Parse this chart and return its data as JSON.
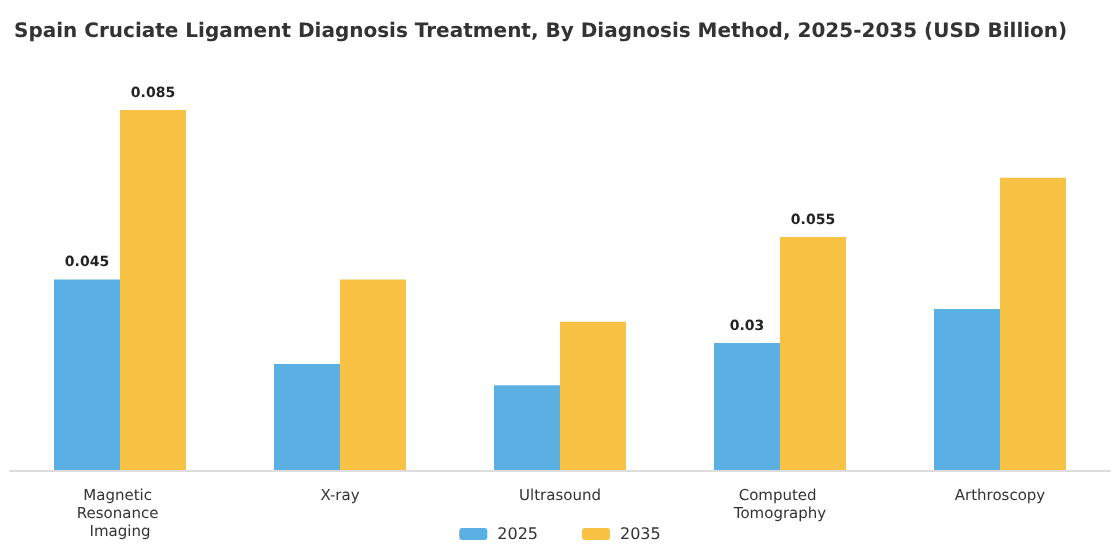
{
  "chart_data": {
    "type": "bar",
    "title": "Spain Cruciate Ligament Diagnosis Treatment, By Diagnosis Method, 2025-2035 (USD Billion)",
    "categories": [
      "Magnetic Resonance Imaging",
      "X-ray",
      "Ultrasound",
      "Computed Tomography",
      "Arthroscopy"
    ],
    "series": [
      {
        "name": "2025",
        "color": "#5aafe3",
        "values": [
          0.045,
          0.025,
          0.02,
          0.03,
          0.038
        ],
        "value_labels": [
          "0.045",
          null,
          null,
          "0.03",
          null
        ]
      },
      {
        "name": "2035",
        "color": "#f8c245",
        "values": [
          0.085,
          0.045,
          0.035,
          0.055,
          0.069
        ],
        "value_labels": [
          "0.085",
          null,
          null,
          "0.055",
          null
        ]
      }
    ],
    "legend": "bottom",
    "grid": false
  }
}
